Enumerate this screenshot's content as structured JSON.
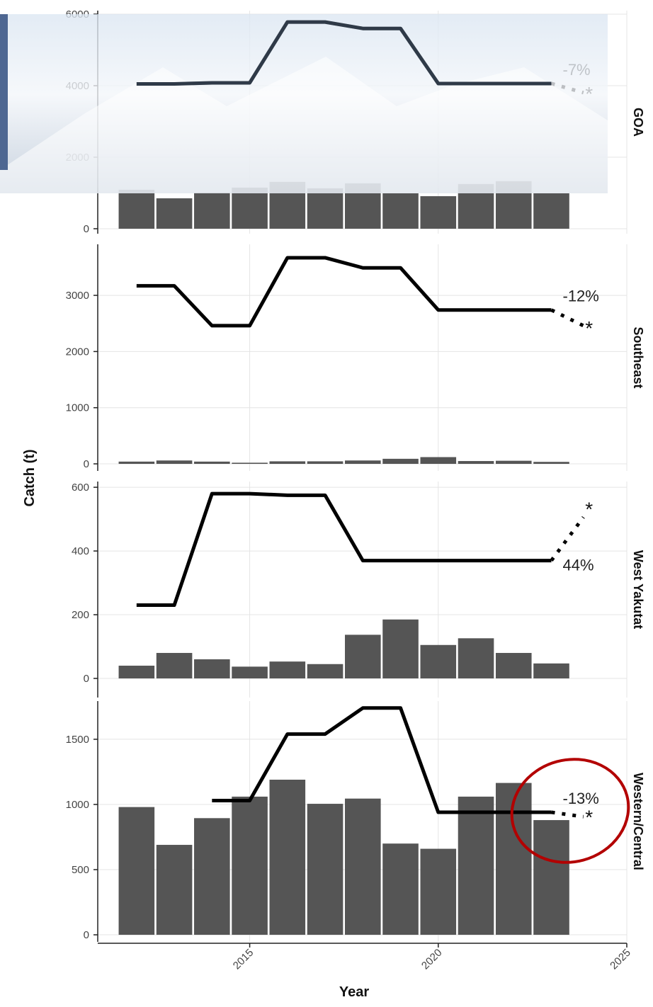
{
  "chart_data": {
    "type": "combo",
    "x_label": "Year",
    "y_label": "Catch (t)",
    "years": [
      2012,
      2013,
      2014,
      2015,
      2016,
      2017,
      2018,
      2019,
      2020,
      2021,
      2022,
      2023
    ],
    "projection_year": 2024,
    "xlim": [
      2010.97,
      2025
    ],
    "xticks": [
      2015,
      2020,
      2025
    ],
    "bar_color": "#555555",
    "line_color": "#000000",
    "grid": true,
    "panels": [
      {
        "label": "GOA",
        "ylim": [
          -139,
          6099
        ],
        "yticks": [
          0,
          2000,
          4000,
          6000
        ],
        "bars": [
          1090,
          850,
          1010,
          1150,
          1310,
          1130,
          1270,
          990,
          910,
          1250,
          1330,
          990
        ],
        "line": [
          4050,
          4050,
          4080,
          4080,
          5780,
          5780,
          5600,
          5600,
          4060,
          4060,
          4060,
          4060
        ],
        "projection": 3760,
        "change_label": "-7%"
      },
      {
        "label": "Southeast",
        "ylim": [
          -126,
          3909
        ],
        "yticks": [
          0,
          1000,
          2000,
          3000
        ],
        "bars": [
          40,
          60,
          40,
          20,
          45,
          45,
          60,
          90,
          120,
          50,
          55,
          35
        ],
        "line": [
          3170,
          3170,
          2460,
          2460,
          3670,
          3670,
          3490,
          3490,
          2740,
          2740,
          2740,
          2740
        ],
        "projection": 2410,
        "change_label": "-12%"
      },
      {
        "label": "West Yakutat",
        "ylim": [
          -60,
          618
        ],
        "yticks": [
          0,
          200,
          400,
          600
        ],
        "bars": [
          40,
          80,
          60,
          37,
          53,
          45,
          137,
          185,
          105,
          126,
          80,
          47
        ],
        "line": [
          230,
          230,
          580,
          580,
          575,
          575,
          370,
          370,
          370,
          370,
          370,
          370
        ],
        "projection": 530,
        "change_label": "44%"
      },
      {
        "label": "Western/Central",
        "ylim": [
          -54,
          1793
        ],
        "yticks": [
          0,
          500,
          1000,
          1500
        ],
        "bars": [
          980,
          690,
          895,
          1060,
          1190,
          1005,
          1045,
          700,
          660,
          1060,
          1165,
          880
        ],
        "line": [
          null,
          null,
          1030,
          1030,
          1540,
          1540,
          1740,
          1740,
          940,
          940,
          940,
          940
        ],
        "projection": 900,
        "change_label": "-13%"
      }
    ]
  }
}
